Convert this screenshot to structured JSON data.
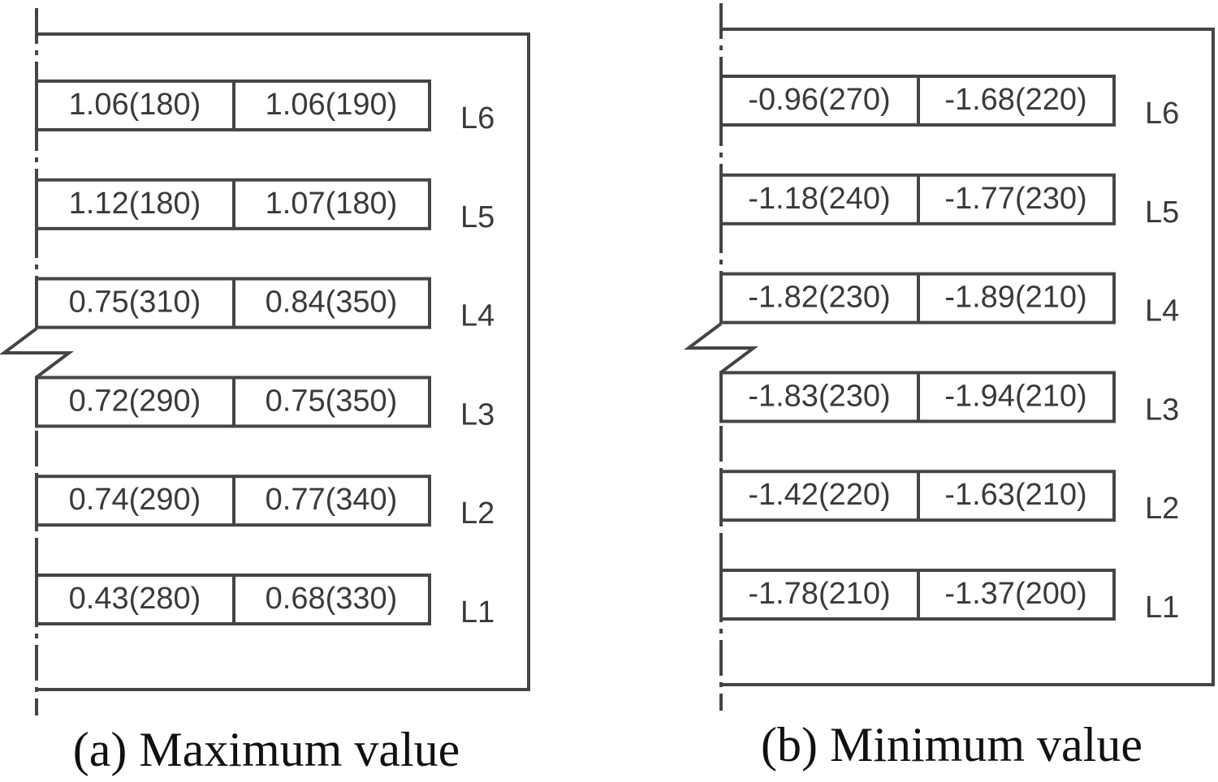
{
  "panels": [
    {
      "caption": "(a) Maximum value",
      "levels": [
        {
          "label": "L6",
          "cells": [
            "1.06(180)",
            "1.06(190)"
          ]
        },
        {
          "label": "L5",
          "cells": [
            "1.12(180)",
            "1.07(180)"
          ]
        },
        {
          "label": "L4",
          "cells": [
            "0.75(310)",
            "0.84(350)"
          ]
        },
        {
          "label": "L3",
          "cells": [
            "0.72(290)",
            "0.75(350)"
          ]
        },
        {
          "label": "L2",
          "cells": [
            "0.74(290)",
            "0.77(340)"
          ]
        },
        {
          "label": "L1",
          "cells": [
            "0.43(280)",
            "0.68(330)"
          ]
        }
      ]
    },
    {
      "caption": "(b) Minimum value",
      "levels": [
        {
          "label": "L6",
          "cells": [
            "-0.96(270)",
            "-1.68(220)"
          ]
        },
        {
          "label": "L5",
          "cells": [
            "-1.18(240)",
            "-1.77(230)"
          ]
        },
        {
          "label": "L4",
          "cells": [
            "-1.82(230)",
            "-1.89(210)"
          ]
        },
        {
          "label": "L3",
          "cells": [
            "-1.83(230)",
            "-1.94(210)"
          ]
        },
        {
          "label": "L2",
          "cells": [
            "-1.42(220)",
            "-1.63(210)"
          ]
        },
        {
          "label": "L1",
          "cells": [
            "-1.78(210)",
            "-1.37(200)"
          ]
        }
      ]
    }
  ]
}
